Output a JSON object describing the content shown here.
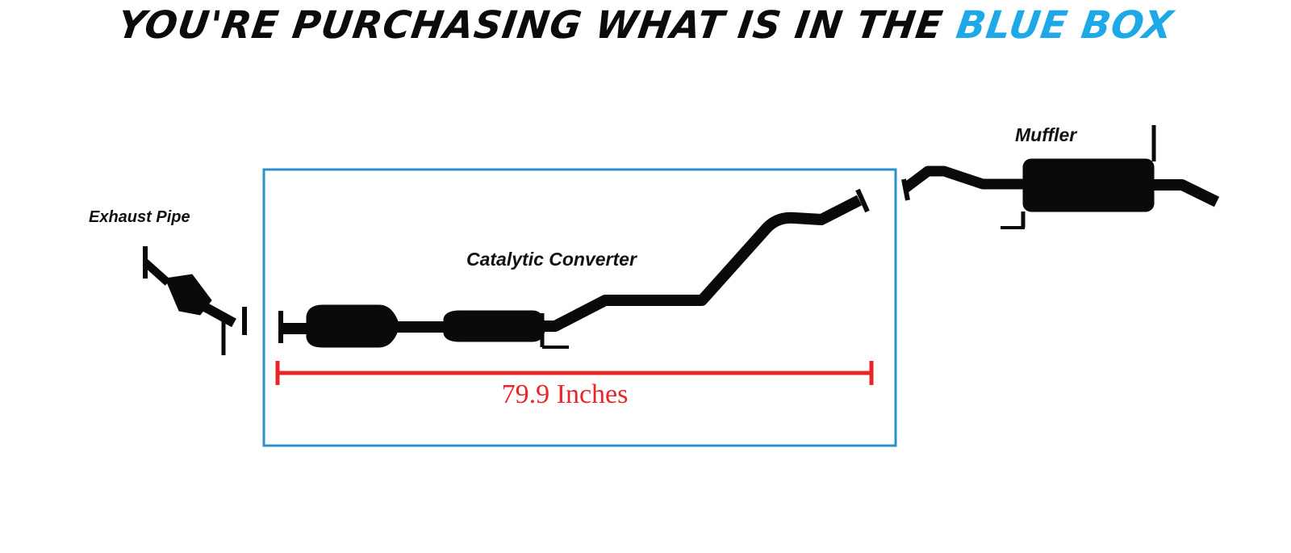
{
  "headline": {
    "main": "YOU'RE PURCHASING WHAT IS IN THE ",
    "highlight": "BLUE BOX"
  },
  "labels": {
    "exhaust_pipe": "Exhaust Pipe",
    "catalytic_converter": "Catalytic Converter",
    "muffler": "Muffler",
    "measurement": "79.9 Inches"
  },
  "colors": {
    "box_border": "#2c8fc9",
    "highlight": "#1da9e6",
    "measurement": "#e8262a",
    "pipe": "#0a0a0a"
  }
}
